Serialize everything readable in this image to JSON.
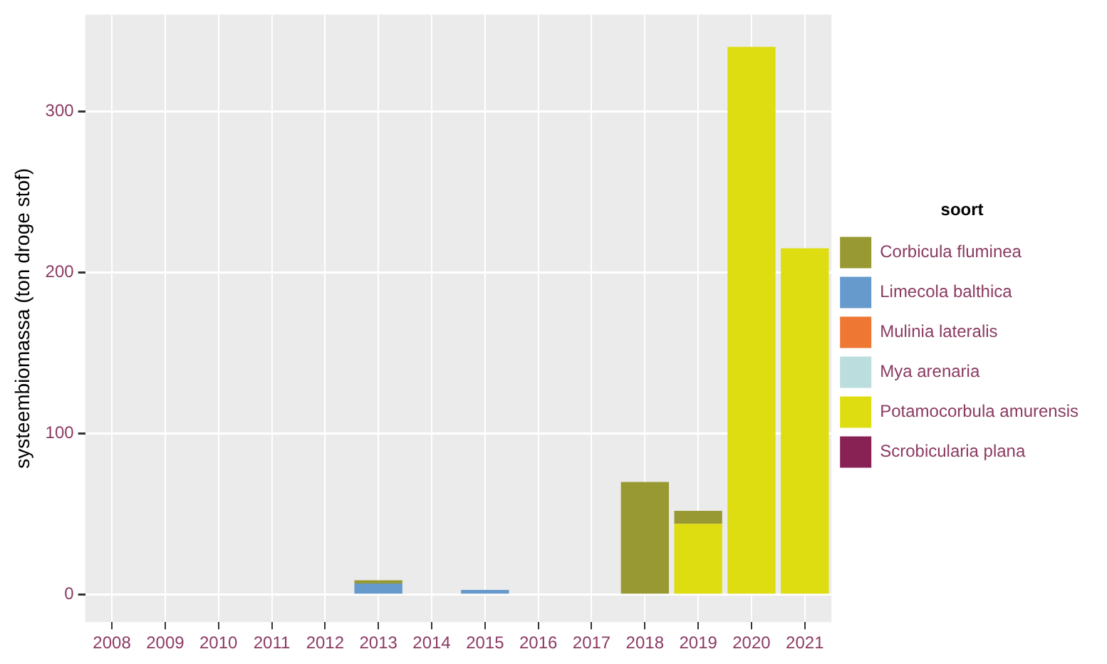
{
  "chart_data": {
    "type": "bar",
    "stacked": true,
    "ylabel": "systeembiomassa (ton droge stof)",
    "legend_title": "soort",
    "legend": "right",
    "grid": true,
    "categories": [
      "2008",
      "2009",
      "2010",
      "2011",
      "2012",
      "2013",
      "2014",
      "2015",
      "2016",
      "2017",
      "2018",
      "2019",
      "2020",
      "2021"
    ],
    "ylim": [
      -17,
      360
    ],
    "yticks": [
      0,
      100,
      200,
      300
    ],
    "series": [
      {
        "name": "Scrobicularia plana",
        "color": "#882255",
        "values": [
          null,
          null,
          null,
          null,
          null,
          null,
          null,
          null,
          null,
          null,
          null,
          null,
          null,
          null
        ]
      },
      {
        "name": "Potamocorbula amurensis",
        "color": "#dddd11",
        "values": [
          null,
          null,
          null,
          null,
          null,
          null,
          null,
          null,
          null,
          null,
          null,
          44,
          340,
          215
        ]
      },
      {
        "name": "Mya arenaria",
        "color": "#bbdddd",
        "values": [
          null,
          null,
          null,
          null,
          null,
          null,
          null,
          null,
          null,
          null,
          null,
          null,
          null,
          null
        ]
      },
      {
        "name": "Mulinia lateralis",
        "color": "#ee7733",
        "values": [
          null,
          null,
          null,
          null,
          null,
          null,
          null,
          null,
          null,
          null,
          null,
          null,
          null,
          null
        ]
      },
      {
        "name": "Limecola balthica",
        "color": "#6699cc",
        "values": [
          null,
          null,
          null,
          null,
          null,
          7,
          null,
          3,
          null,
          null,
          null,
          null,
          null,
          null
        ]
      },
      {
        "name": "Corbicula fluminea",
        "color": "#999933",
        "values": [
          null,
          null,
          null,
          null,
          null,
          2,
          null,
          null,
          null,
          null,
          70,
          8,
          null,
          null
        ]
      }
    ]
  }
}
